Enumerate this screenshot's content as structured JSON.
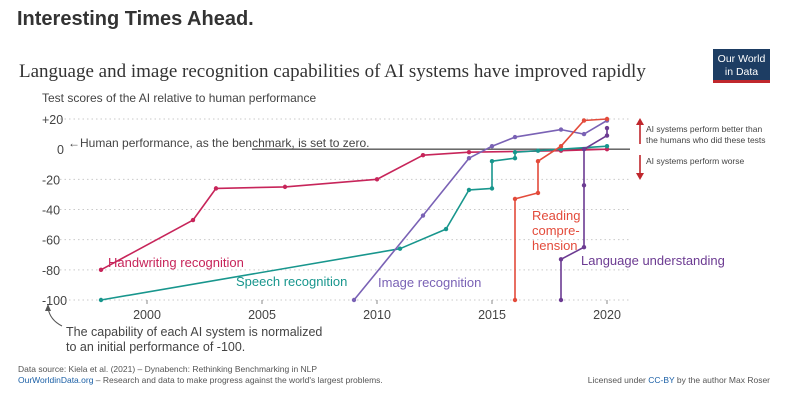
{
  "slide": {
    "heading": "Interesting Times Ahead."
  },
  "logo": {
    "line1": "Our World",
    "line2": "in Data",
    "bg_color": "#1d3d63",
    "accent_color": "#c0272d"
  },
  "chart_data": {
    "type": "line",
    "title": "Language and image recognition capabilities of AI systems have improved rapidly",
    "ylabel": "Test scores of the AI relative to human performance",
    "xlabel": "",
    "xlim": [
      1997,
      2021
    ],
    "ylim": [
      -100,
      20
    ],
    "x_ticks": [
      2000,
      2005,
      2010,
      2015,
      2020
    ],
    "y_ticks": [
      {
        "value": 20,
        "label": "+20"
      },
      {
        "value": 0,
        "label": "0"
      },
      {
        "value": -20,
        "label": "-20"
      },
      {
        "value": -40,
        "label": "-40"
      },
      {
        "value": -60,
        "label": "-60"
      },
      {
        "value": -80,
        "label": "-80"
      },
      {
        "value": -100,
        "label": "-100"
      }
    ],
    "grid": "horizontal dotted",
    "series": [
      {
        "name": "Handwriting recognition",
        "color": "#c7255a",
        "points": [
          [
            1998,
            -80
          ],
          [
            2002,
            -47
          ],
          [
            2003,
            -26
          ],
          [
            2006,
            -25
          ],
          [
            2010,
            -20
          ],
          [
            2012,
            -4
          ],
          [
            2014,
            -2
          ],
          [
            2018,
            -1
          ],
          [
            2020,
            0
          ]
        ]
      },
      {
        "name": "Speech recognition",
        "color": "#18968d",
        "points": [
          [
            1998,
            -100
          ],
          [
            2011,
            -66
          ],
          [
            2013,
            -53
          ],
          [
            2014,
            -27
          ],
          [
            2015,
            -26
          ],
          [
            2015,
            -8
          ],
          [
            2016,
            -6
          ],
          [
            2016,
            -2
          ],
          [
            2017,
            -1
          ],
          [
            2018,
            0
          ],
          [
            2020,
            2
          ]
        ]
      },
      {
        "name": "Image recognition",
        "color": "#7a62b5",
        "points": [
          [
            2009,
            -100
          ],
          [
            2012,
            -44
          ],
          [
            2014,
            -6
          ],
          [
            2015,
            2
          ],
          [
            2016,
            8
          ],
          [
            2018,
            13
          ],
          [
            2019,
            10
          ],
          [
            2020,
            19
          ]
        ]
      },
      {
        "name": "Reading comprehension",
        "color": "#e34b3b",
        "points": [
          [
            2016,
            -100
          ],
          [
            2016,
            -33
          ],
          [
            2017,
            -29
          ],
          [
            2017,
            -8
          ],
          [
            2018,
            2
          ],
          [
            2019,
            19
          ],
          [
            2020,
            20
          ]
        ]
      },
      {
        "name": "Language understanding",
        "color": "#6c3b92",
        "points": [
          [
            2018,
            -100
          ],
          [
            2018,
            -73
          ],
          [
            2019,
            -65
          ],
          [
            2019,
            -24
          ],
          [
            2019,
            0
          ],
          [
            2020,
            9
          ],
          [
            2020,
            14
          ]
        ]
      }
    ],
    "series_labels": [
      {
        "text": "Handwriting recognition",
        "series": 0
      },
      {
        "text": "Speech recognition",
        "series": 1
      },
      {
        "text": "Image recognition",
        "series": 2
      },
      {
        "text": "Reading",
        "series": 3
      },
      {
        "text": "compre-",
        "series": 3
      },
      {
        "text": "hension",
        "series": 3
      },
      {
        "text": "Language understanding",
        "series": 4
      }
    ],
    "annotations": {
      "benchmark": "←Human performance, as the benchmark, is set to zero.",
      "better_1": "AI systems perform better than",
      "better_2": "the humans who did these tests",
      "worse": "AI systems perform worse",
      "normalized_1": "The capability of each AI system is normalized",
      "normalized_2": "to an initial performance of -100."
    },
    "arrow_color": "#c0272d"
  },
  "footer": {
    "source": "Data source: Kiela et al. (2021) – Dynabench: Rethinking Benchmarking in NLP",
    "site": "OurWorldinData.org",
    "tagline": " – Research and data to make progress against the world's largest problems.",
    "license_prefix": "Licensed under ",
    "license_link": "CC-BY",
    "license_suffix": " by the author Max Roser"
  }
}
